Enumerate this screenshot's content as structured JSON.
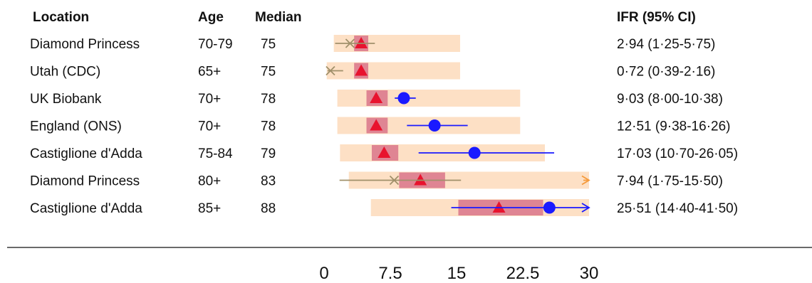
{
  "chart_data": {
    "type": "forest",
    "columns": {
      "location": "Location",
      "age": "Age",
      "median": "Median",
      "ifr": "IFR (95% CI)"
    },
    "xlim": [
      0,
      30
    ],
    "xticks": [
      "0",
      "7.5",
      "15",
      "22.5",
      "30"
    ],
    "xtick_values": [
      0,
      7.5,
      15,
      22.5,
      30
    ],
    "colors": {
      "band": "#fde0c5",
      "inner_band": "#d9748a",
      "triangle": "#e8132e",
      "blue": "#1a1aff",
      "olive": "#a0906a",
      "orange": "#f59a3a"
    },
    "rows": [
      {
        "location": "Diamond Princess",
        "age": "70-79",
        "median": "75",
        "ifr_text": "2·94 (1·25-5·75)",
        "band": [
          1.1,
          15.4
        ],
        "inner": [
          3.4,
          5.0
        ],
        "triangle": 4.2,
        "estimate": 2.94,
        "ci": [
          1.25,
          5.75
        ],
        "marker": "cross",
        "color": "olive",
        "arrow": false
      },
      {
        "location": "Utah (CDC)",
        "age": "65+",
        "median": "75",
        "ifr_text": "0·72 (0·39-2·16)",
        "band": [
          0.3,
          15.4
        ],
        "inner": [
          3.4,
          5.0
        ],
        "triangle": 4.2,
        "estimate": 0.72,
        "ci": [
          0.39,
          2.16
        ],
        "marker": "cross",
        "color": "olive",
        "arrow": false
      },
      {
        "location": "UK Biobank",
        "age": "70+",
        "median": "78",
        "ifr_text": "9·03 (8·00-10·38)",
        "band": [
          1.5,
          22.2
        ],
        "inner": [
          4.8,
          7.2
        ],
        "triangle": 5.9,
        "estimate": 9.03,
        "ci": [
          8.0,
          10.38
        ],
        "marker": "dot",
        "color": "blue",
        "arrow": false
      },
      {
        "location": "England (ONS)",
        "age": "70+",
        "median": "78",
        "ifr_text": "12·51 (9·38-16·26)",
        "band": [
          1.5,
          22.2
        ],
        "inner": [
          4.8,
          7.2
        ],
        "triangle": 5.9,
        "estimate": 12.51,
        "ci": [
          9.38,
          16.26
        ],
        "marker": "dot",
        "color": "blue",
        "arrow": false
      },
      {
        "location": "Castiglione d'Adda",
        "age": "75-84",
        "median": "79",
        "ifr_text": "17·03 (10·70-26·05)",
        "band": [
          1.8,
          25.0
        ],
        "inner": [
          5.4,
          8.4
        ],
        "triangle": 6.8,
        "estimate": 17.03,
        "ci": [
          10.7,
          26.05
        ],
        "marker": "dot",
        "color": "blue",
        "arrow": false
      },
      {
        "location": "Diamond Princess",
        "age": "80+",
        "median": "83",
        "ifr_text": "7·94 (1·75-15·50)",
        "band": [
          2.8,
          30.0
        ],
        "inner": [
          8.5,
          13.7
        ],
        "triangle": 10.9,
        "estimate": 7.94,
        "ci": [
          1.75,
          15.5
        ],
        "marker": "cross",
        "color": "olive",
        "arrow": true
      },
      {
        "location": "Castiglione d'Adda",
        "age": "85+",
        "median": "88",
        "ifr_text": "25·51 (14·40-41·50)",
        "band": [
          5.3,
          30.0
        ],
        "inner": [
          15.2,
          24.8
        ],
        "triangle": 19.8,
        "estimate": 25.51,
        "ci": [
          14.4,
          41.5
        ],
        "marker": "dot",
        "color": "blue",
        "arrow": true
      }
    ]
  }
}
